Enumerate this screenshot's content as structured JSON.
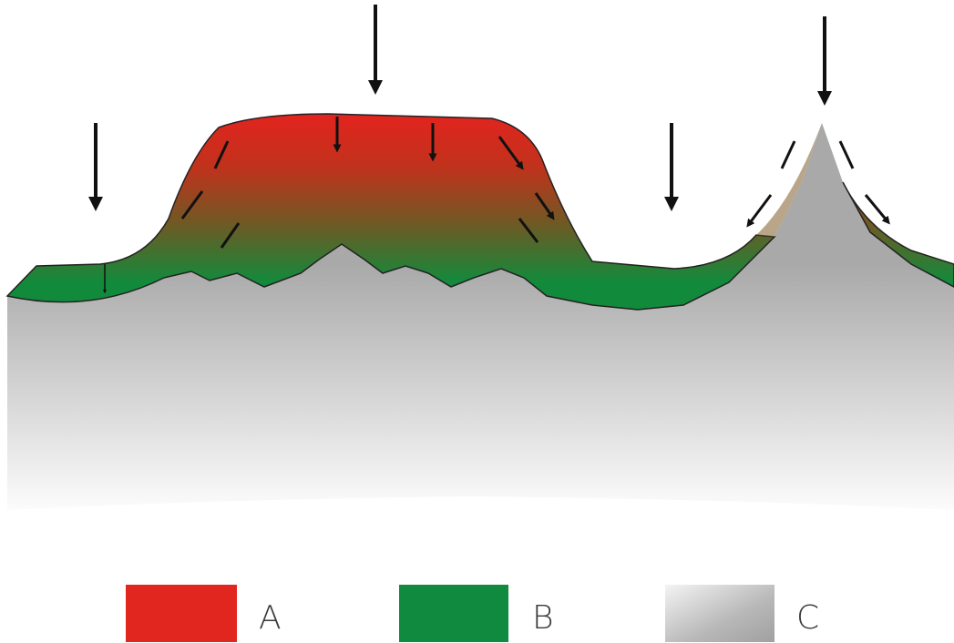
{
  "legend": [
    {
      "label": "A"
    },
    {
      "label": "B"
    },
    {
      "label": "C"
    }
  ]
}
